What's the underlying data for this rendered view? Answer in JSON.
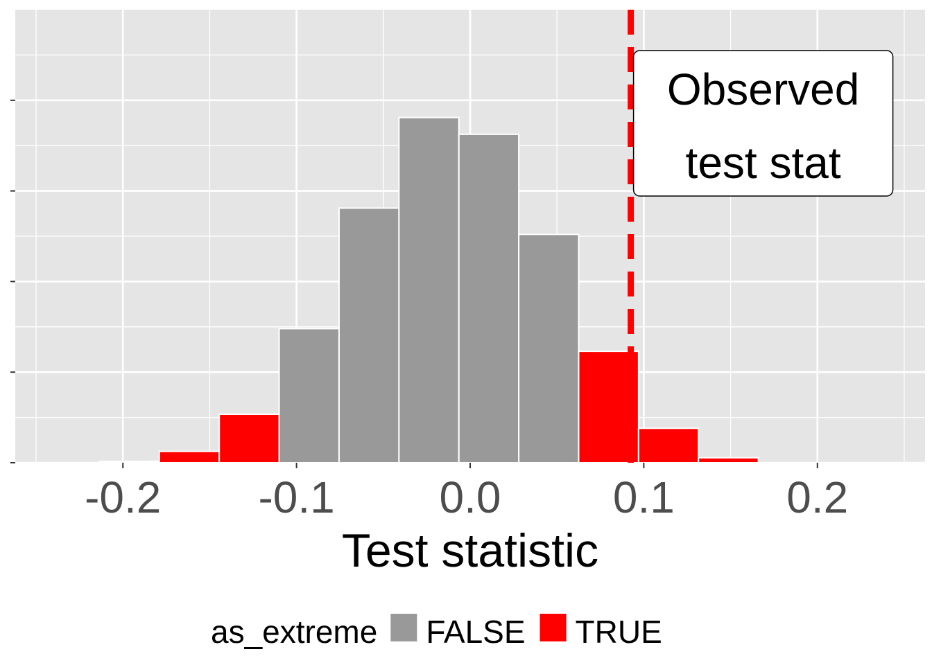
{
  "chart_data": {
    "type": "bar",
    "subtype": "histogram",
    "xlabel": "Test statistic",
    "ylabel": "",
    "xlim": [
      -0.262,
      0.262
    ],
    "ylim": [
      0,
      100
    ],
    "x_ticks": [
      -0.2,
      -0.1,
      0.0,
      0.1,
      0.2
    ],
    "x_tick_labels": [
      "-0.2",
      "-0.1",
      "0.0",
      "0.1",
      "0.2"
    ],
    "y_ticks": [
      0,
      20,
      40,
      60,
      80
    ],
    "grid": true,
    "bin_width": 0.0345,
    "bins": [
      {
        "x_min": -0.2135,
        "x_max": -0.179,
        "count": 0.3,
        "as_extreme": "TRUE"
      },
      {
        "x_min": -0.179,
        "x_max": -0.1445,
        "count": 2.5,
        "as_extreme": "TRUE"
      },
      {
        "x_min": -0.1445,
        "x_max": -0.11,
        "count": 10.7,
        "as_extreme": "TRUE"
      },
      {
        "x_min": -0.11,
        "x_max": -0.0755,
        "count": 29.6,
        "as_extreme": "FALSE"
      },
      {
        "x_min": -0.0755,
        "x_max": -0.041,
        "count": 56.2,
        "as_extreme": "FALSE"
      },
      {
        "x_min": -0.041,
        "x_max": -0.0065,
        "count": 76.2,
        "as_extreme": "FALSE"
      },
      {
        "x_min": -0.0065,
        "x_max": 0.028,
        "count": 72.5,
        "as_extreme": "FALSE"
      },
      {
        "x_min": 0.028,
        "x_max": 0.0625,
        "count": 50.4,
        "as_extreme": "FALSE"
      },
      {
        "x_min": 0.0625,
        "x_max": 0.097,
        "count": 24.6,
        "as_extreme": "TRUE"
      },
      {
        "x_min": 0.097,
        "x_max": 0.1315,
        "count": 7.6,
        "as_extreme": "TRUE"
      },
      {
        "x_min": 0.1315,
        "x_max": 0.166,
        "count": 1.1,
        "as_extreme": "TRUE"
      }
    ],
    "observed_line": {
      "x": 0.0925,
      "color": "#ff0000",
      "style": "dashed"
    },
    "annotation": {
      "lines": [
        "Observed",
        "test stat"
      ],
      "anchor": "right of observed line, near top"
    },
    "legend": {
      "title": "as_extreme",
      "position": "bottom",
      "entries": [
        {
          "label": "FALSE",
          "color": "#999999"
        },
        {
          "label": "TRUE",
          "color": "#ff0000"
        }
      ]
    },
    "colors": {
      "panel_bg": "#e5e5e5",
      "grid": "#ffffff",
      "bar_outline": "#ffffff"
    }
  }
}
